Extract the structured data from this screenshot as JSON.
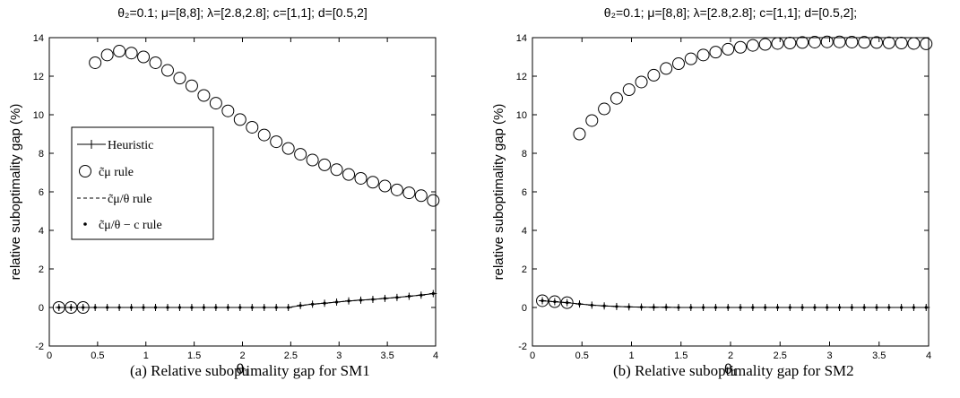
{
  "chart_data": [
    {
      "type": "scatter",
      "title": "θ₂=0.1; μ=[8,8]; λ=[2.8,2.8]; c=[1,1]; d=[0.5,2]",
      "xlabel": "θ₁",
      "ylabel": "relative suboptimality gap (%)",
      "xlim": [
        0,
        4
      ],
      "ylim": [
        -2,
        14
      ],
      "xticks": [
        "0",
        "0.5",
        "1",
        "1.5",
        "2",
        "2.5",
        "3",
        "3.5",
        "4"
      ],
      "yticks": [
        "-2",
        "0",
        "2",
        "4",
        "6",
        "8",
        "10",
        "12",
        "14"
      ],
      "grid": false,
      "legend_position": "middle-left",
      "caption": "(a) Relative suboptimality gap for SM1",
      "series": [
        {
          "name": "Heuristic",
          "marker": "plus-line",
          "x": [
            0.1,
            0.225,
            0.35,
            0.475,
            0.6,
            0.725,
            0.85,
            0.975,
            1.1,
            1.225,
            1.35,
            1.475,
            1.6,
            1.725,
            1.85,
            1.975,
            2.1,
            2.225,
            2.35,
            2.475,
            2.6,
            2.725,
            2.85,
            2.975,
            3.1,
            3.225,
            3.35,
            3.475,
            3.6,
            3.725,
            3.85,
            3.975
          ],
          "y": [
            0,
            0,
            0,
            0,
            0,
            0,
            0,
            0,
            0,
            0,
            0,
            0,
            0,
            0,
            0,
            0,
            0,
            0,
            0,
            0,
            0.1,
            0.17,
            0.22,
            0.28,
            0.34,
            0.38,
            0.42,
            0.47,
            0.52,
            0.58,
            0.64,
            0.72
          ]
        },
        {
          "name": "c̃μ rule",
          "marker": "open-circle",
          "x": [
            0.1,
            0.225,
            0.35,
            0.475,
            0.6,
            0.725,
            0.85,
            0.975,
            1.1,
            1.225,
            1.35,
            1.475,
            1.6,
            1.725,
            1.85,
            1.975,
            2.1,
            2.225,
            2.35,
            2.475,
            2.6,
            2.725,
            2.85,
            2.975,
            3.1,
            3.225,
            3.35,
            3.475,
            3.6,
            3.725,
            3.85,
            3.975
          ],
          "y": [
            0,
            0,
            0,
            12.7,
            13.1,
            13.3,
            13.2,
            13.0,
            12.7,
            12.3,
            11.9,
            11.5,
            11.0,
            10.6,
            10.2,
            9.75,
            9.35,
            8.95,
            8.6,
            8.25,
            7.95,
            7.65,
            7.4,
            7.15,
            6.9,
            6.7,
            6.5,
            6.3,
            6.1,
            5.95,
            5.8,
            5.55
          ]
        },
        {
          "name": "c̃μ/θ rule",
          "marker": "dashed-line",
          "x": [
            0.1,
            0.225,
            0.35,
            0.475,
            0.6,
            0.725,
            0.85,
            0.975,
            1.1,
            1.225,
            1.35,
            1.475,
            1.6,
            1.725,
            1.85,
            1.975,
            2.1,
            2.225,
            2.35,
            2.475,
            2.6,
            2.725,
            2.85,
            2.975,
            3.1,
            3.225,
            3.35,
            3.475,
            3.6,
            3.725,
            3.85,
            3.975
          ],
          "y": [
            0,
            0,
            0,
            0,
            0,
            0,
            0,
            0,
            0,
            0,
            0,
            0,
            0,
            0,
            0,
            0,
            0,
            0,
            0,
            0,
            0.1,
            0.17,
            0.22,
            0.28,
            0.34,
            0.38,
            0.42,
            0.47,
            0.52,
            0.58,
            0.64,
            0.72
          ]
        },
        {
          "name": "c̃μ/θ − c rule",
          "marker": "dot",
          "x": [
            0.1,
            0.225,
            0.35,
            0.475,
            0.6,
            0.725,
            0.85,
            0.975,
            1.1,
            1.225,
            1.35,
            1.475,
            1.6,
            1.725,
            1.85,
            1.975,
            2.1,
            2.225,
            2.35,
            2.475,
            2.6,
            2.725,
            2.85,
            2.975,
            3.1,
            3.225,
            3.35,
            3.475,
            3.6,
            3.725,
            3.85,
            3.975
          ],
          "y": [
            0,
            0,
            0,
            0,
            0,
            0,
            0,
            0,
            0,
            0,
            0,
            0,
            0,
            0,
            0,
            0,
            0,
            0,
            0,
            0,
            0.1,
            0.17,
            0.22,
            0.28,
            0.34,
            0.38,
            0.42,
            0.47,
            0.52,
            0.58,
            0.64,
            0.72
          ]
        }
      ]
    },
    {
      "type": "scatter",
      "title": "θ₂=0.1; μ=[8,8]; λ=[2.8,2.8]; c=[1,1]; d=[0.5,2];",
      "xlabel": "θ₁",
      "ylabel": "relative suboptimality gap (%)",
      "xlim": [
        0,
        4
      ],
      "ylim": [
        -2,
        14
      ],
      "xticks": [
        "0",
        "0.5",
        "1",
        "1.5",
        "2",
        "2.5",
        "3",
        "3.5",
        "4"
      ],
      "yticks": [
        "-2",
        "0",
        "2",
        "4",
        "6",
        "8",
        "10",
        "12",
        "14"
      ],
      "grid": false,
      "caption": "(b) Relative suboptimality gap for SM2",
      "series": [
        {
          "marker": "plus-line",
          "x": [
            0.1,
            0.225,
            0.35,
            0.475,
            0.6,
            0.725,
            0.85,
            0.975,
            1.1,
            1.225,
            1.35,
            1.475,
            1.6,
            1.725,
            1.85,
            1.975,
            2.1,
            2.225,
            2.35,
            2.475,
            2.6,
            2.725,
            2.85,
            2.975,
            3.1,
            3.225,
            3.35,
            3.475,
            3.6,
            3.725,
            3.85,
            3.975
          ],
          "y": [
            0.35,
            0.3,
            0.25,
            0.18,
            0.12,
            0.08,
            0.05,
            0.03,
            0.02,
            0.01,
            0.01,
            0,
            0,
            0,
            0,
            0,
            0,
            0,
            0,
            0,
            0,
            0,
            0,
            0,
            0,
            0,
            0,
            0,
            0,
            0,
            0,
            0
          ]
        },
        {
          "marker": "open-circle",
          "x": [
            0.1,
            0.225,
            0.35,
            0.475,
            0.6,
            0.725,
            0.85,
            0.975,
            1.1,
            1.225,
            1.35,
            1.475,
            1.6,
            1.725,
            1.85,
            1.975,
            2.1,
            2.225,
            2.35,
            2.475,
            2.6,
            2.725,
            2.85,
            2.975,
            3.1,
            3.225,
            3.35,
            3.475,
            3.6,
            3.725,
            3.85,
            3.975
          ],
          "y": [
            0.35,
            0.3,
            0.25,
            9.0,
            9.7,
            10.3,
            10.85,
            11.3,
            11.7,
            12.05,
            12.4,
            12.65,
            12.9,
            13.1,
            13.25,
            13.4,
            13.5,
            13.6,
            13.65,
            13.7,
            13.72,
            13.75,
            13.77,
            13.78,
            13.78,
            13.77,
            13.76,
            13.75,
            13.73,
            13.72,
            13.7,
            13.68
          ]
        },
        {
          "marker": "dashed-line",
          "x": [
            0.1,
            0.225,
            0.35,
            0.475,
            0.6,
            0.725,
            0.85,
            0.975,
            1.1,
            1.225,
            1.35,
            1.475,
            1.6,
            1.725,
            1.85,
            1.975,
            2.1,
            2.225,
            2.35,
            2.475,
            2.6,
            2.725,
            2.85,
            2.975,
            3.1,
            3.225,
            3.35,
            3.475,
            3.6,
            3.725,
            3.85,
            3.975
          ],
          "y": [
            0.35,
            0.3,
            0.25,
            0.18,
            0.12,
            0.08,
            0.05,
            0.03,
            0.02,
            0.01,
            0.01,
            0,
            0,
            0,
            0,
            0,
            0,
            0,
            0,
            0,
            0,
            0,
            0,
            0,
            0,
            0,
            0,
            0,
            0,
            0,
            0,
            0
          ]
        },
        {
          "marker": "dot",
          "x": [
            0.1,
            0.225,
            0.35,
            0.475,
            0.6,
            0.725,
            0.85,
            0.975,
            1.1,
            1.225,
            1.35,
            1.475,
            1.6,
            1.725,
            1.85,
            1.975,
            2.1,
            2.225,
            2.35,
            2.475,
            2.6,
            2.725,
            2.85,
            2.975,
            3.1,
            3.225,
            3.35,
            3.475,
            3.6,
            3.725,
            3.85,
            3.975
          ],
          "y": [
            0.35,
            0.3,
            0.25,
            0.18,
            0.12,
            0.08,
            0.05,
            0.03,
            0.02,
            0.01,
            0.01,
            0,
            0,
            0,
            0,
            0,
            0,
            0,
            0,
            0,
            0,
            0,
            0,
            0,
            0,
            0,
            0,
            0,
            0,
            0,
            0,
            0
          ]
        }
      ]
    }
  ]
}
